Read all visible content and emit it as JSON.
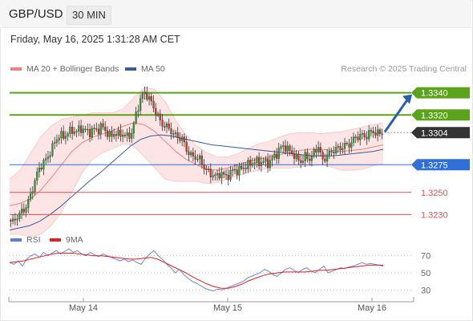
{
  "header": {
    "pair": "GBP/USD",
    "timeframe": "30 MIN"
  },
  "datetime": "Friday, May 16, 2025 1:31:28 AM CET",
  "legend": {
    "ma20": {
      "label": "MA 20 + Bollinger Bands",
      "color": "#f08080"
    },
    "ma50": {
      "label": "MA 50",
      "color": "#3a5a99"
    }
  },
  "credit": "Research © 2025 Trading Central",
  "colors": {
    "up": "#2e9e2e",
    "down": "#c0392b",
    "wick": "#333333",
    "resistance": "#5aa31a",
    "support_strong": "#2f6fd6",
    "support": "#e05050",
    "band_fill": "#fde2e2",
    "last_bg": "#333333",
    "arrow": "#2b5ea8"
  },
  "chart_data": [
    {
      "type": "candlestick",
      "instrument": "GBP/USD",
      "interval": "30 MIN",
      "ylim": [
        1.3215,
        1.3355
      ],
      "x_ticks": [
        "May 14",
        "May 15",
        "May 16"
      ],
      "last_price": "1.3304",
      "levels": [
        {
          "value": 1.334,
          "label": "1.3340",
          "kind": "resistance"
        },
        {
          "value": 1.332,
          "label": "1.3320",
          "kind": "resistance"
        },
        {
          "value": 1.3275,
          "label": "1.3275",
          "kind": "support_strong"
        },
        {
          "value": 1.325,
          "label": "1.3250",
          "kind": "support"
        },
        {
          "value": 1.323,
          "label": "1.3230",
          "kind": "support"
        }
      ],
      "close_path": [
        1.3225,
        1.3223,
        1.3228,
        1.3232,
        1.3236,
        1.3245,
        1.3258,
        1.327,
        1.3276,
        1.328,
        1.3288,
        1.3296,
        1.3302,
        1.33,
        1.3304,
        1.3306,
        1.3305,
        1.3308,
        1.3306,
        1.3304,
        1.3307,
        1.3306,
        1.331,
        1.3305,
        1.33,
        1.3304,
        1.3302,
        1.3303,
        1.33,
        1.3304,
        1.332,
        1.3334,
        1.334,
        1.3336,
        1.3328,
        1.332,
        1.3312,
        1.331,
        1.3307,
        1.3302,
        1.33,
        1.3298,
        1.3288,
        1.3283,
        1.3282,
        1.328,
        1.3273,
        1.3268,
        1.3266,
        1.3264,
        1.3268,
        1.3264,
        1.3266,
        1.3271,
        1.3269,
        1.3272,
        1.3274,
        1.3276,
        1.3278,
        1.3277,
        1.3278,
        1.3276,
        1.328,
        1.3284,
        1.329,
        1.3292,
        1.3288,
        1.3285,
        1.328,
        1.3278,
        1.3283,
        1.328,
        1.3286,
        1.3292,
        1.3278,
        1.3284,
        1.3286,
        1.329,
        1.3289,
        1.3293,
        1.3292,
        1.3297,
        1.33,
        1.3302,
        1.33,
        1.3304,
        1.3305,
        1.3303,
        1.3304
      ],
      "ma20": [
        1.3238,
        1.324,
        1.3244,
        1.3252,
        1.3263,
        1.3275,
        1.3287,
        1.3295,
        1.33,
        1.3303,
        1.3306,
        1.331,
        1.3313,
        1.3311,
        1.3305,
        1.3296,
        1.3287,
        1.328,
        1.3275,
        1.3271,
        1.327,
        1.3272,
        1.3275,
        1.3278,
        1.328,
        1.3282,
        1.3284,
        1.3286,
        1.3288,
        1.3289,
        1.3289,
        1.3288,
        1.3287,
        1.3288,
        1.3289,
        1.3291,
        1.3293
      ],
      "bb_upper": [
        1.3262,
        1.327,
        1.3285,
        1.33,
        1.331,
        1.3316,
        1.3318,
        1.332,
        1.3322,
        1.3322,
        1.3322,
        1.3326,
        1.3336,
        1.3345,
        1.3343,
        1.3332,
        1.3315,
        1.3302,
        1.3292,
        1.3286,
        1.3282,
        1.3282,
        1.3285,
        1.329,
        1.3294,
        1.3296,
        1.33,
        1.3303,
        1.3304,
        1.3304,
        1.3303,
        1.3304,
        1.3305,
        1.3307,
        1.3309,
        1.3311,
        1.3313
      ],
      "bb_lower": [
        1.3212,
        1.3212,
        1.321,
        1.3212,
        1.322,
        1.3232,
        1.325,
        1.3268,
        1.328,
        1.3286,
        1.329,
        1.3294,
        1.3292,
        1.3282,
        1.3272,
        1.3262,
        1.326,
        1.326,
        1.326,
        1.3258,
        1.3259,
        1.3262,
        1.3265,
        1.3268,
        1.327,
        1.3272,
        1.3272,
        1.3272,
        1.3273,
        1.3274,
        1.3275,
        1.3273,
        1.327,
        1.327,
        1.3271,
        1.3274,
        1.3276
      ],
      "ma50": [
        1.3216,
        1.3218,
        1.322,
        1.3224,
        1.323,
        1.3237,
        1.3245,
        1.3253,
        1.3261,
        1.3268,
        1.3276,
        1.3284,
        1.3292,
        1.3298,
        1.3301,
        1.3302,
        1.3301,
        1.3299,
        1.3297,
        1.3295,
        1.3293,
        1.3292,
        1.3291,
        1.329,
        1.3289,
        1.3288,
        1.3287,
        1.3286,
        1.3285,
        1.3284,
        1.3283,
        1.3283,
        1.3283,
        1.3284,
        1.3285,
        1.3286,
        1.3287,
        1.3289
      ]
    },
    {
      "type": "line",
      "title": "RSI",
      "series": [
        {
          "name": "RSI",
          "color": "#5b7fd4",
          "values": [
            62,
            60,
            64,
            58,
            66,
            70,
            72,
            68,
            74,
            70,
            73,
            76,
            72,
            75,
            78,
            74,
            76,
            72,
            70,
            74,
            71,
            69,
            72,
            70,
            68,
            66,
            64,
            66,
            63,
            65,
            62,
            60,
            67,
            72,
            76,
            70,
            66,
            60,
            56,
            50,
            54,
            48,
            44,
            40,
            38,
            35,
            32,
            30,
            29,
            31,
            30,
            32,
            34,
            36,
            38,
            40,
            44,
            46,
            48,
            50,
            54,
            52,
            48,
            46,
            50,
            54,
            56,
            53,
            50,
            54,
            56,
            52,
            50,
            54,
            58,
            50,
            52,
            54,
            56,
            55,
            57,
            58,
            60,
            62,
            60,
            61,
            60,
            59,
            58
          ]
        },
        {
          "name": "9MA",
          "color": "#dd2222",
          "values": [
            62,
            63,
            64,
            66,
            68,
            70,
            72,
            73,
            73,
            73,
            72,
            71,
            70,
            70,
            69,
            68,
            67,
            66,
            66,
            67,
            68,
            66,
            62,
            58,
            54,
            50,
            45,
            41,
            37,
            34,
            32,
            32,
            34,
            37,
            41,
            44,
            47,
            49,
            50,
            51,
            51,
            51,
            51,
            52,
            53,
            53,
            54,
            55,
            56,
            57,
            58,
            59,
            59,
            59
          ]
        }
      ],
      "ylim": [
        20,
        80
      ],
      "y_ticks": [
        70,
        50,
        30
      ]
    }
  ]
}
